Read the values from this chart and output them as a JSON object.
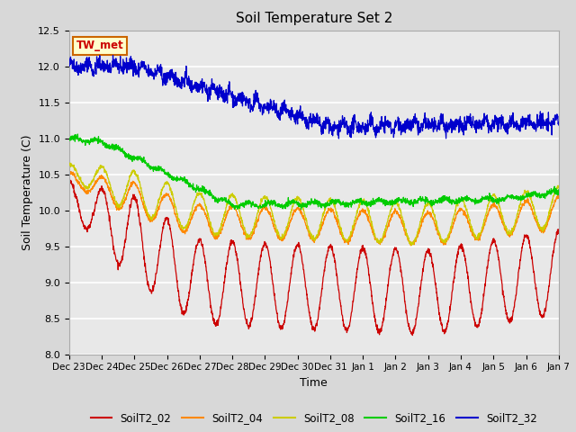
{
  "title": "Soil Temperature Set 2",
  "xlabel": "Time",
  "ylabel": "Soil Temperature (C)",
  "ylim": [
    8.0,
    12.5
  ],
  "yticks": [
    8.0,
    8.5,
    9.0,
    9.5,
    10.0,
    10.5,
    11.0,
    11.5,
    12.0,
    12.5
  ],
  "x_tick_labels": [
    "Dec 23",
    "Dec 24",
    "Dec 25",
    "Dec 26",
    "Dec 27",
    "Dec 28",
    "Dec 29",
    "Dec 30",
    "Dec 31",
    "Jan 1",
    "Jan 2",
    "Jan 3",
    "Jan 4",
    "Jan 5",
    "Jan 6",
    "Jan 7"
  ],
  "series_colors": {
    "SoilT2_02": "#cc0000",
    "SoilT2_04": "#ff8800",
    "SoilT2_08": "#cccc00",
    "SoilT2_16": "#00cc00",
    "SoilT2_32": "#0000cc"
  },
  "annotation_text": "TW_met",
  "annotation_color": "#cc0000",
  "annotation_bg": "#ffffcc",
  "annotation_border": "#cc6600",
  "fig_bg_color": "#d8d8d8",
  "plot_bg_color": "#e8e8e8",
  "grid_color": "#ffffff"
}
